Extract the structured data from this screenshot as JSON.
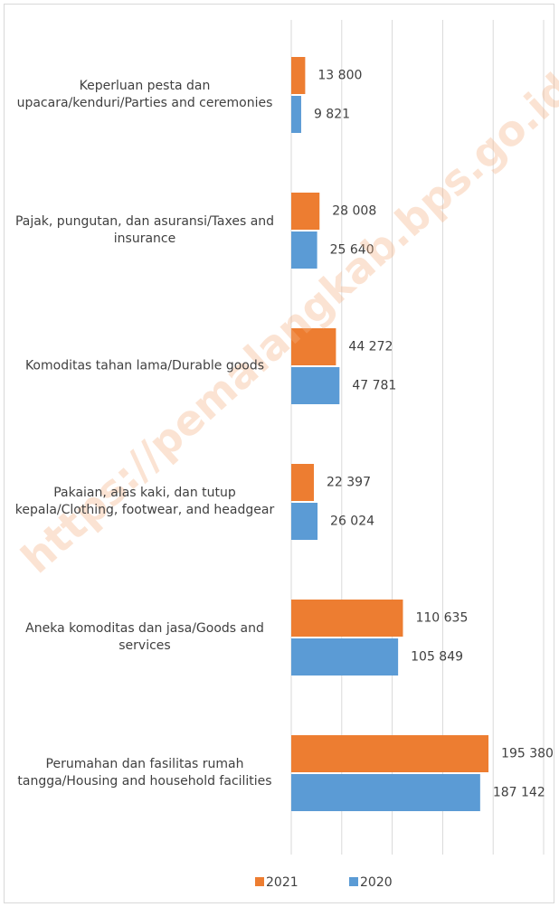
{
  "chart_data": {
    "type": "bar",
    "orientation": "horizontal",
    "categories": [
      "Keperluan pesta dan upacara/kenduri/Parties and ceremonies",
      "Pajak, pungutan, dan asuransi/Taxes and insurance",
      "Komoditas tahan lama/Durable goods",
      "Pakaian, alas kaki, dan tutup kepala/Clothing, footwear, and headgear",
      "Aneka komoditas dan jasa/Goods and services",
      "Perumahan dan fasilitas rumah tangga/Housing and household facilities"
    ],
    "series": [
      {
        "name": "2021",
        "color": "#ED7D31",
        "values": [
          13800,
          28008,
          44272,
          22397,
          110635,
          195380
        ],
        "value_labels": [
          "13 800",
          "28 008",
          "44 272",
          "22 397",
          "110 635",
          "195 380"
        ]
      },
      {
        "name": "2020",
        "color": "#5B9BD5",
        "values": [
          9821,
          25640,
          47781,
          26024,
          105849,
          187142
        ],
        "value_labels": [
          "9 821",
          "25 640",
          "47 781",
          "26 024",
          "105 849",
          "187 142"
        ]
      }
    ],
    "xlim": [
      0,
      250000
    ],
    "xticks": [
      0,
      50000,
      100000,
      150000,
      200000,
      250000
    ],
    "grid": true,
    "legend": "bottom",
    "watermark": "https://pemalangkab.bps.go.id"
  }
}
